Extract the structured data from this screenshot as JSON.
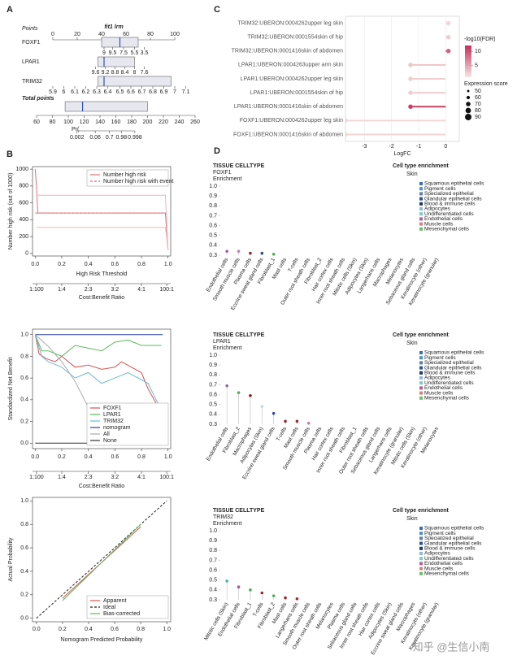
{
  "watermark": "知乎 @生信小南",
  "chart_data": [
    {
      "panel": "A",
      "type": "nomogram",
      "title": "fit1 lrm",
      "points_label": "Points",
      "xlim": [
        0,
        100
      ],
      "xticks": [
        0,
        20,
        40,
        60,
        80,
        100
      ],
      "rows": [
        {
          "name": "FOXF1",
          "ticks": [
            {
              "value": 42,
              "label": "9"
            },
            {
              "value": 49,
              "label": "9.5"
            },
            {
              "value": 58,
              "label": "7.5"
            },
            {
              "value": 67,
              "label": "5.5"
            },
            {
              "value": 75,
              "label": "3.5"
            }
          ],
          "box": [
            40,
            55,
            70
          ]
        },
        {
          "name": "LPAR1",
          "ticks": [
            {
              "value": 35,
              "label": "9.6"
            },
            {
              "value": 43,
              "label": "9.2"
            },
            {
              "value": 51,
              "label": "8.8"
            },
            {
              "value": 59,
              "label": "8.4"
            },
            {
              "value": 67,
              "label": "8"
            },
            {
              "value": 75,
              "label": "7.6"
            }
          ],
          "box": [
            37,
            42,
            67
          ]
        },
        {
          "name": "TRIM32",
          "ticks": [
            {
              "value": 0,
              "label": "5.9"
            },
            {
              "value": 9,
              "label": "6"
            },
            {
              "value": 18,
              "label": "6.1"
            },
            {
              "value": 27,
              "label": "6.2"
            },
            {
              "value": 36,
              "label": "6.3"
            },
            {
              "value": 45,
              "label": "6.4"
            },
            {
              "value": 55,
              "label": "6.5"
            },
            {
              "value": 64,
              "label": "6.6"
            },
            {
              "value": 73,
              "label": "6.7"
            },
            {
              "value": 82,
              "label": "6.8"
            },
            {
              "value": 91,
              "label": "6.9"
            },
            {
              "value": 100,
              "label": "7"
            },
            {
              "value": 109,
              "label": "7.1"
            }
          ],
          "box": [
            37,
            42,
            97
          ]
        }
      ],
      "total_label": "Total points",
      "total_lim": [
        60,
        260
      ],
      "total_ticks": [
        60,
        80,
        100,
        120,
        140,
        160,
        180,
        200,
        220,
        240,
        260
      ],
      "total_box": [
        96,
        118,
        200
      ],
      "prob_label": "Pr(",
      "prob_ticks": [
        {
          "value": 111,
          "label": "0.002"
        },
        {
          "value": 134,
          "label": "0.06"
        },
        {
          "value": 152,
          "label": "0.7"
        },
        {
          "value": 167,
          "label": "0.98"
        },
        {
          "value": 184,
          "label": "0.998"
        }
      ]
    },
    {
      "panel": "B",
      "type": "line",
      "ylabel": "Number high risk (out of 1000)",
      "xlabel": "High Risk Threshold",
      "x2label": "Cost:Benefit Ratio",
      "xlim": [
        -0.02,
        1.02
      ],
      "xticks": [
        {
          "value": 0,
          "label": "0.0"
        },
        0.2,
        0.4,
        0.6,
        0.8,
        {
          "value": 1,
          "label": "1.0"
        }
      ],
      "x2ticks": [
        {
          "value": 0.01,
          "label": "1:100"
        },
        {
          "value": 0.2,
          "label": "1:4"
        },
        {
          "value": 0.4,
          "label": "2:3"
        },
        {
          "value": 0.6,
          "label": "3:2"
        },
        {
          "value": 0.8,
          "label": "4:1"
        },
        {
          "value": 0.99,
          "label": "100:1"
        }
      ],
      "ylim": [
        -30,
        1030
      ],
      "yticks": [
        0,
        200,
        400,
        600,
        800,
        1000
      ],
      "legend": "top-right",
      "series": [
        {
          "name": "Number high risk",
          "color": "#e0707a",
          "x": [
            0,
            0.01,
            0.02,
            0.98,
            1
          ],
          "values": [
            1000,
            800,
            480,
            480,
            40
          ]
        },
        {
          "name": "Number high risk with event",
          "color": "#e0707a",
          "dash": true,
          "x": [
            0,
            0.02,
            0.98,
            1
          ],
          "values": [
            480,
            480,
            480,
            40
          ]
        },
        {
          "color": "#f2b3b9",
          "x": [
            0.01,
            0.02,
            0.98,
            1
          ],
          "values": [
            690,
            690,
            690,
            40
          ]
        },
        {
          "color": "#f2b3b9",
          "x": [
            0.01,
            0.02,
            0.98,
            1
          ],
          "values": [
            310,
            310,
            310,
            40
          ]
        }
      ]
    },
    {
      "type": "line",
      "ylabel": "Standardized Net Benefit",
      "x2label": "Cost:Benefit Ratio",
      "xlim": [
        -0.02,
        1.02
      ],
      "xticks": [
        {
          "value": 0,
          "label": "0.0"
        },
        0.2,
        0.4,
        0.6,
        0.8,
        {
          "value": 1,
          "label": "1.0"
        }
      ],
      "x2ticks": [
        {
          "value": 0.01,
          "label": "1:100"
        },
        {
          "value": 0.2,
          "label": "1:4"
        },
        {
          "value": 0.4,
          "label": "2:3"
        },
        {
          "value": 0.6,
          "label": "3:2"
        },
        {
          "value": 0.8,
          "label": "4:1"
        },
        {
          "value": 0.99,
          "label": "100:1"
        }
      ],
      "ylim": [
        -0.05,
        1.05
      ],
      "yticks": [
        {
          "value": 0,
          "label": "0.0"
        },
        0.2,
        0.4,
        0.6,
        0.8,
        {
          "value": 1,
          "label": "1.0"
        }
      ],
      "legend": "bottom-right",
      "series": [
        {
          "name": "FOXF1",
          "color": "#d9534f",
          "x": [
            0,
            0.03,
            0.08,
            0.15,
            0.2,
            0.3,
            0.4,
            0.5,
            0.6,
            0.65,
            0.8,
            0.85,
            0.95
          ],
          "values": [
            1,
            0.82,
            0.78,
            0.75,
            0.8,
            0.7,
            0.72,
            0.68,
            0.7,
            0.75,
            0.65,
            0.5,
            0.28
          ]
        },
        {
          "name": "LPAR1",
          "color": "#5cb85c",
          "x": [
            0,
            0.05,
            0.1,
            0.2,
            0.3,
            0.5,
            0.6,
            0.7,
            0.8,
            0.95
          ],
          "values": [
            1,
            0.85,
            0.85,
            0.8,
            0.9,
            0.85,
            0.93,
            0.95,
            0.9,
            0.9
          ]
        },
        {
          "name": "TRIM32",
          "color": "#6fb7d6",
          "x": [
            0,
            0.05,
            0.1,
            0.2,
            0.3,
            0.4,
            0.5,
            0.6,
            0.7,
            0.85,
            0.95
          ],
          "values": [
            1,
            0.8,
            0.75,
            0.7,
            0.6,
            0.65,
            0.55,
            0.6,
            0.65,
            0.55,
            0.3
          ]
        },
        {
          "name": "nomogram",
          "color": "#2c3e9a",
          "x": [
            0,
            0.96
          ],
          "values": [
            1,
            1
          ]
        },
        {
          "name": "All",
          "color": "#aaaaaa",
          "x": [
            0,
            0.1,
            0.2,
            0.3,
            0.4,
            0.5
          ],
          "values": [
            1,
            0.89,
            0.75,
            0.57,
            0.33,
            0
          ]
        },
        {
          "name": "None",
          "color": "#333333",
          "x": [
            0,
            1
          ],
          "values": [
            0,
            0
          ]
        }
      ]
    },
    {
      "type": "line",
      "ylabel": "Actual Probability",
      "xlabel": "Nomogram Predicted Probability",
      "xlim": [
        -0.03,
        1.03
      ],
      "xticks": [
        {
          "value": 0,
          "label": "0.0"
        },
        0.2,
        0.4,
        0.6,
        0.8,
        {
          "value": 1,
          "label": "1.0"
        }
      ],
      "ylim": [
        -0.03,
        1.03
      ],
      "yticks": [
        {
          "value": 0,
          "label": "0.0"
        },
        0.2,
        0.4,
        0.6,
        0.8,
        {
          "value": 1,
          "label": "1.0"
        }
      ],
      "legend": "bottom-right",
      "series": [
        {
          "name": "Apparent",
          "color": "#d9534f",
          "x": [
            0.2,
            0.8
          ],
          "values": [
            0.17,
            0.78
          ]
        },
        {
          "name": "Ideal",
          "color": "#222222",
          "dash": true,
          "x": [
            0,
            1
          ],
          "values": [
            0,
            1
          ]
        },
        {
          "name": "Bias-corrected",
          "color": "#5cb85c",
          "x": [
            0.2,
            0.8
          ],
          "values": [
            0.15,
            0.8
          ]
        }
      ]
    },
    {
      "panel": "C",
      "type": "lollipop-h",
      "xlabel": "LogFC",
      "xlim": [
        -3.7,
        0.5
      ],
      "xticks": [
        -3,
        -2,
        -1,
        0
      ],
      "categories": [
        "TRIM32:UBERON:0004262upper leg skin",
        "TRIM32:UBERON:0001554skin of hip",
        "TRIM32:UBERON:0001416skin of abdomen",
        "LPAR1:UBERON:0004263upper arm skin",
        "LPAR1:UBERON:0004262upper leg skin",
        "LPAR1:UBERON:0001554skin of hip",
        "LPAR1:UBERON:0001416skin of abdomen",
        "FOXF1:UBERON:0004262upper leg skin",
        "FOXF1:UBERON:0001416skin of abdomen"
      ],
      "values": [
        0.1,
        0.1,
        0.1,
        -1.3,
        -1.3,
        -1.3,
        -1.3,
        -3.7,
        -3.7
      ],
      "fdr": [
        2,
        2.5,
        9,
        3,
        2.5,
        2.5,
        11,
        2,
        2
      ],
      "sizes": [
        70,
        70,
        70,
        70,
        70,
        70,
        70,
        70,
        70
      ],
      "color_label": "-log10(FDR)",
      "color_lim": [
        1,
        12
      ],
      "color_ticks": [
        5,
        10
      ],
      "color_range": [
        "#f8e6e3",
        "#c2305a"
      ],
      "size_label": "Expression score",
      "size_lim": [
        50,
        90
      ],
      "size_ticks": [
        50,
        60,
        70,
        80,
        90
      ]
    },
    {
      "panel": "D",
      "type": "lollipop",
      "header": "TISSUE CELLTYPE",
      "gene": "FOXF1",
      "ylabel": "Enrichment",
      "legend_title": "Cell type enrichment",
      "tissue": "Skin",
      "ylim": [
        0.3,
        1.0
      ],
      "yticks": [
        0.3,
        0.4,
        0.5,
        0.6,
        0.7,
        0.8,
        0.9,
        {
          "value": 1,
          "label": "1.0"
        }
      ],
      "categories": [
        "Endothelial cells",
        "Smooth muscle cells",
        "Plasma cells",
        "Eccrine sweat gland cells",
        "Fibroblast_1",
        "Mast cells",
        "T-cells",
        "Outer root sheath cells",
        "Fibroblast_2",
        "Hair cortex cells",
        "Inner root sheath cells",
        "Mitotic cells (Skin)",
        "Adipocytes (Skin)",
        "Langerhans cells",
        "Macrophages",
        "Melanocytes",
        "Sebaceous gland cells",
        "Keratinocyte (other)",
        "Keratinocyte (granular)"
      ],
      "values": [
        0.34,
        0.34,
        0.32,
        0.32,
        0.31,
        null,
        null,
        null,
        null,
        null,
        null,
        null,
        null,
        null,
        null,
        null,
        null,
        null,
        null
      ],
      "colors": [
        "#a45aa0",
        "#c679b0",
        "#a0282a",
        "#2e4c9c",
        "#4caf50",
        null,
        null,
        null,
        null,
        null,
        null,
        null,
        null,
        null,
        null,
        null,
        null,
        null,
        null
      ],
      "groups": [
        {
          "name": "Squamous epithelial cells",
          "color": "#3b6fb6"
        },
        {
          "name": "Pigment cells",
          "color": "#4a90c8"
        },
        {
          "name": "Specialized epithelial",
          "color": "#5b7fa8"
        },
        {
          "name": "Glandular epithelial cells",
          "color": "#2f5597"
        },
        {
          "name": "Blood & immune cells",
          "color": "#1f3864"
        },
        {
          "name": "Adipocytes",
          "color": "#8fb8de"
        },
        {
          "name": "Undifferentiated cells",
          "color": "#7ec8c8"
        },
        {
          "name": "Endothelial cells",
          "color": "#b0609a"
        },
        {
          "name": "Muscle cells",
          "color": "#d98080"
        },
        {
          "name": "Mesenchymal cells",
          "color": "#6bbf6b"
        }
      ]
    },
    {
      "type": "lollipop",
      "header": "TISSUE CELLTYPE",
      "gene": "LPAR1",
      "ylabel": "Enrichment",
      "legend_title": "Cell type enrichment",
      "tissue": "Skin",
      "ylim": [
        0.3,
        1.0
      ],
      "yticks": [
        0.3,
        0.4,
        0.5,
        0.6,
        0.7,
        0.8,
        0.9,
        {
          "value": 1,
          "label": "1.0"
        }
      ],
      "categories": [
        "Endothelial cells",
        "Fibroblast_2",
        "Macrophages",
        "Adipocytes (Skin)",
        "Eccrine sweat gland cells",
        "T-cells",
        "Mast cells",
        "Smooth muscle cells",
        "Plasma cells",
        "Hair cortex cells",
        "Inner root sheath cells",
        "Fibroblast_1",
        "Outer root sheath cells",
        "Sebaceous gland cells",
        "Langerhans cells",
        "Keratinocyte (granular)",
        "Mitotic cells (Skin)",
        "Keratinocyte (other)",
        "Melanocytes"
      ],
      "values": [
        0.69,
        0.62,
        0.59,
        0.48,
        0.41,
        0.33,
        0.33,
        0.31,
        null,
        null,
        null,
        null,
        null,
        null,
        null,
        null,
        null,
        null,
        null
      ],
      "colors": [
        "#a45aa0",
        "#4caf50",
        "#8b1c1c",
        "#b8d8e8",
        "#2e4c9c",
        "#a0282a",
        "#a0282a",
        "#c679b0",
        null,
        null,
        null,
        null,
        null,
        null,
        null,
        null,
        null,
        null,
        null
      ],
      "groups": [
        {
          "name": "Squamous epithelial cells",
          "color": "#3b6fb6"
        },
        {
          "name": "Pigment cells",
          "color": "#4a90c8"
        },
        {
          "name": "Specialized epithelial",
          "color": "#5b7fa8"
        },
        {
          "name": "Glandular epithelial cells",
          "color": "#2f5597"
        },
        {
          "name": "Blood & immune cells",
          "color": "#1f3864"
        },
        {
          "name": "Adipocytes",
          "color": "#8fb8de"
        },
        {
          "name": "Undifferentiated cells",
          "color": "#7ec8c8"
        },
        {
          "name": "Endothelial cells",
          "color": "#b0609a"
        },
        {
          "name": "Muscle cells",
          "color": "#d98080"
        },
        {
          "name": "Mesenchymal cells",
          "color": "#6bbf6b"
        }
      ]
    },
    {
      "type": "lollipop",
      "header": "TISSUE CELLTYPE",
      "gene": "TRIM32",
      "ylabel": "Enrichment",
      "legend_title": "Cell type enrichment",
      "tissue": "Skin",
      "ylim": [
        0.3,
        1.0
      ],
      "yticks": [
        0.3,
        0.4,
        0.5,
        0.6,
        0.7,
        0.8,
        0.9,
        {
          "value": 1,
          "label": "1.0"
        }
      ],
      "categories": [
        "Mitotic cells (Skin)",
        "Endothelial cells",
        "Fibroblast_1",
        "T-cells",
        "Fibroblast_2",
        "Mast cells",
        "Langerhans cells",
        "Smooth muscle cells",
        "Outer root sheath cells",
        "Melanocytes",
        "Plasma cells",
        "Sebaceous gland cells",
        "Inner root sheath cells",
        "Hair cortex cells",
        "Adipocytes (Skin)",
        "Eccrine sweat gland cells",
        "Macrophages",
        "Keratinocyte (other)",
        "Keratinocyte (granular)"
      ],
      "values": [
        0.49,
        0.43,
        0.4,
        0.37,
        0.34,
        0.32,
        0.31,
        null,
        null,
        null,
        null,
        null,
        null,
        null,
        null,
        null,
        null,
        null,
        null
      ],
      "colors": [
        "#4ab0c0",
        "#a45aa0",
        "#4caf50",
        "#a0282a",
        "#4caf50",
        "#a0282a",
        "#a0282a",
        null,
        null,
        null,
        null,
        null,
        null,
        null,
        null,
        null,
        null,
        null,
        null
      ],
      "groups": [
        {
          "name": "Squamous epithelial cells",
          "color": "#3b6fb6"
        },
        {
          "name": "Pigment cells",
          "color": "#4a90c8"
        },
        {
          "name": "Specialized epithelial",
          "color": "#5b7fa8"
        },
        {
          "name": "Glandular epithelial cells",
          "color": "#2f5597"
        },
        {
          "name": "Blood & immune cells",
          "color": "#1f3864"
        },
        {
          "name": "Adipocytes",
          "color": "#8fb8de"
        },
        {
          "name": "Undifferentiated cells",
          "color": "#7ec8c8"
        },
        {
          "name": "Endothelial cells",
          "color": "#b0609a"
        },
        {
          "name": "Muscle cells",
          "color": "#d98080"
        },
        {
          "name": "Mesenchymal cells",
          "color": "#6bbf6b"
        }
      ]
    }
  ]
}
